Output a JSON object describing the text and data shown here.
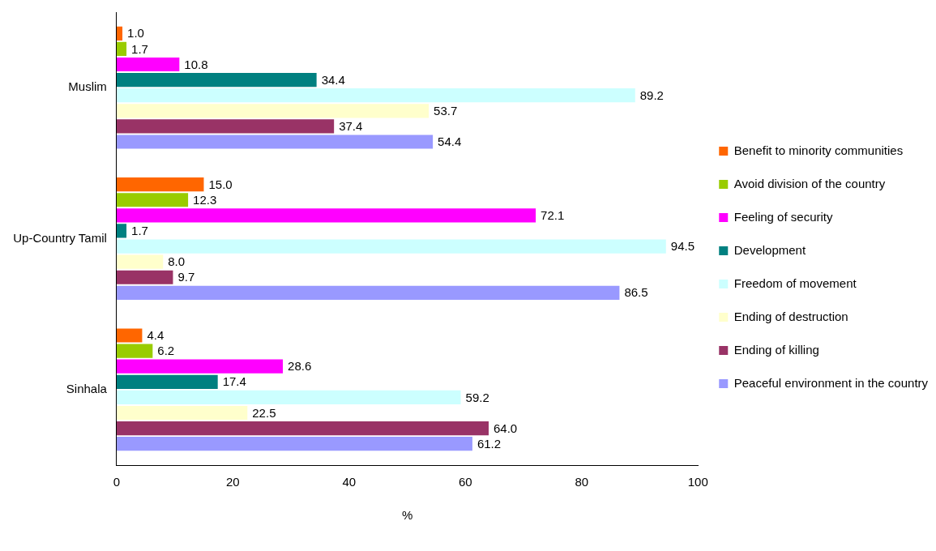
{
  "chart_data": {
    "type": "bar",
    "orientation": "horizontal",
    "xlabel": "%",
    "categories": [
      "Muslim",
      "Up-Country Tamil",
      "Sinhala"
    ],
    "xlim": [
      0,
      100
    ],
    "xticks": [
      0,
      20,
      40,
      60,
      80,
      100
    ],
    "grid": false,
    "legend": "right",
    "series": [
      {
        "name": "Benefit to minority communities",
        "color": "#ff6600",
        "values": [
          1.0,
          15.0,
          4.4
        ],
        "value_labels": [
          "1.0",
          "15.0",
          "4.4"
        ]
      },
      {
        "name": "Avoid division of the country",
        "color": "#99cc00",
        "values": [
          1.7,
          12.3,
          6.2
        ],
        "value_labels": [
          "1.7",
          "12.3",
          "6.2"
        ]
      },
      {
        "name": "Feeling of security",
        "color": "#ff00ff",
        "values": [
          10.8,
          72.1,
          28.6
        ],
        "value_labels": [
          "10.8",
          "72.1",
          "28.6"
        ]
      },
      {
        "name": "Development",
        "color": "#008080",
        "values": [
          34.4,
          1.7,
          17.4
        ],
        "value_labels": [
          "34.4",
          "1.7",
          "17.4"
        ]
      },
      {
        "name": "Freedom of movement",
        "color": "#ccffff",
        "values": [
          89.2,
          94.5,
          59.2
        ],
        "value_labels": [
          "89.2",
          "94.5",
          "59.2"
        ]
      },
      {
        "name": "Ending of destruction",
        "color": "#ffffcc",
        "values": [
          53.7,
          8.0,
          22.5
        ],
        "value_labels": [
          "53.7",
          "8.0",
          "22.5"
        ]
      },
      {
        "name": "Ending of killing",
        "color": "#993366",
        "values": [
          37.4,
          9.7,
          64.0
        ],
        "value_labels": [
          "37.4",
          "9.7",
          "64.0"
        ]
      },
      {
        "name": "Peaceful environment in the country",
        "color": "#9999ff",
        "values": [
          54.4,
          86.5,
          61.2
        ],
        "value_labels": [
          "54.4",
          "86.5",
          "61.2"
        ]
      }
    ]
  }
}
